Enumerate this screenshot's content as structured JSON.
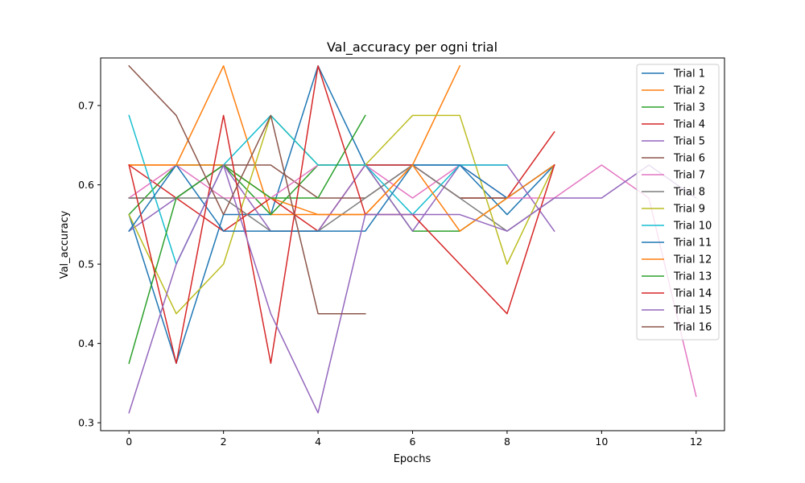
{
  "chart_data": {
    "type": "line",
    "title": "Val_accuracy per ogni trial",
    "xlabel": "Epochs",
    "ylabel": "Val_accuracy",
    "xlim": [
      -0.6,
      12.6
    ],
    "ylim": [
      0.29,
      0.76
    ],
    "xticks": [
      0,
      2,
      4,
      6,
      8,
      10,
      12
    ],
    "yticks": [
      0.3,
      0.4,
      0.5,
      0.6,
      0.7
    ],
    "ytick_labels": [
      "0.3",
      "0.4",
      "0.5",
      "0.6",
      "0.7"
    ],
    "grid": false,
    "legend_position": "top-right",
    "series": [
      {
        "name": "Trial 1",
        "color": "#1f77b4",
        "x": [
          0,
          1,
          2,
          3,
          4,
          5,
          6,
          7,
          8,
          9
        ],
        "values": [
          0.5625,
          0.375,
          0.5625,
          0.5625,
          0.75,
          0.625,
          0.625,
          0.625,
          0.5625,
          0.625
        ]
      },
      {
        "name": "Trial 2",
        "color": "#ff7f0e",
        "x": [
          0,
          1,
          2,
          3,
          4,
          5,
          6,
          7
        ],
        "values": [
          0.625,
          0.625,
          0.75,
          0.5625,
          0.5625,
          0.5625,
          0.625,
          0.75
        ]
      },
      {
        "name": "Trial 3",
        "color": "#2ca02c",
        "x": [
          0,
          1,
          2,
          3,
          4,
          5,
          6,
          7,
          8,
          9
        ],
        "values": [
          0.5625,
          0.625,
          0.625,
          0.5625,
          0.625,
          0.625,
          0.541667,
          0.541667,
          0.583333,
          0.625
        ]
      },
      {
        "name": "Trial 4",
        "color": "#d62728",
        "x": [
          0,
          1,
          2,
          3,
          4,
          5,
          6,
          7,
          8,
          9
        ],
        "values": [
          0.625,
          0.583333,
          0.541667,
          0.583333,
          0.541667,
          0.625,
          0.625,
          0.583333,
          0.583333,
          0.666667
        ]
      },
      {
        "name": "Trial 5",
        "color": "#9467bd",
        "x": [
          0,
          1,
          2,
          3,
          4,
          5,
          6,
          7,
          8,
          9
        ],
        "values": [
          0.541667,
          0.583333,
          0.625,
          0.541667,
          0.541667,
          0.625,
          0.541667,
          0.625,
          0.625,
          0.541667
        ]
      },
      {
        "name": "Trial 6",
        "color": "#8c564b",
        "x": [
          0,
          1,
          2,
          3,
          4,
          5,
          6,
          7,
          8,
          9
        ],
        "values": [
          0.583333,
          0.583333,
          0.625,
          0.625,
          0.583333,
          0.583333,
          0.625,
          0.583333,
          0.583333,
          0.625
        ]
      },
      {
        "name": "Trial 7",
        "color": "#e377c2",
        "x": [
          0,
          1,
          2,
          3,
          4,
          5,
          6,
          7,
          8,
          9,
          10,
          11,
          12
        ],
        "values": [
          0.583333,
          0.625,
          0.583333,
          0.583333,
          0.625,
          0.625,
          0.583333,
          0.625,
          0.583333,
          0.583333,
          0.625,
          0.583333,
          0.333333
        ]
      },
      {
        "name": "Trial 8",
        "color": "#7f7f7f",
        "x": [
          0,
          1,
          2,
          3,
          4,
          5,
          6,
          7,
          8,
          9
        ],
        "values": [
          0.583333,
          0.583333,
          0.583333,
          0.541667,
          0.541667,
          0.583333,
          0.625,
          0.583333,
          0.541667,
          0.583333
        ]
      },
      {
        "name": "Trial 9",
        "color": "#bcbd22",
        "x": [
          0,
          1,
          2,
          3,
          4,
          5,
          6,
          7,
          8,
          9
        ],
        "values": [
          0.5625,
          0.4375,
          0.5,
          0.6875,
          0.625,
          0.625,
          0.6875,
          0.6875,
          0.5,
          0.625
        ]
      },
      {
        "name": "Trial 10",
        "color": "#17becf",
        "x": [
          0,
          1,
          2,
          3,
          4,
          5,
          6,
          7,
          8
        ],
        "values": [
          0.6875,
          0.5,
          0.625,
          0.6875,
          0.625,
          0.625,
          0.5625,
          0.625,
          0.625
        ]
      },
      {
        "name": "Trial 11",
        "color": "#1f77b4",
        "x": [
          0,
          1,
          2,
          3,
          4,
          5,
          6,
          7,
          8,
          9
        ],
        "values": [
          0.541667,
          0.625,
          0.541667,
          0.541667,
          0.541667,
          0.541667,
          0.625,
          0.625,
          0.583333,
          0.625
        ]
      },
      {
        "name": "Trial 12",
        "color": "#ff7f0e",
        "x": [
          0,
          1,
          2,
          3,
          4,
          5,
          6,
          7,
          8,
          9
        ],
        "values": [
          0.625,
          0.625,
          0.625,
          0.583333,
          0.5625,
          0.5625,
          0.625,
          0.541667,
          0.583333,
          0.625
        ]
      },
      {
        "name": "Trial 13",
        "color": "#2ca02c",
        "x": [
          0,
          1,
          2,
          3,
          4,
          5
        ],
        "values": [
          0.375,
          0.583333,
          0.625,
          0.583333,
          0.583333,
          0.6875
        ]
      },
      {
        "name": "Trial 14",
        "color": "#d62728",
        "x": [
          0,
          1,
          2,
          3,
          4,
          5,
          6,
          7,
          8,
          9
        ],
        "values": [
          0.625,
          0.375,
          0.6875,
          0.375,
          0.75,
          0.5625,
          0.5625,
          0.5,
          0.4375,
          0.625
        ]
      },
      {
        "name": "Trial 15",
        "color": "#9467bd",
        "x": [
          0,
          1,
          2,
          3,
          4,
          5,
          6,
          7,
          8,
          9,
          10,
          11,
          12
        ],
        "values": [
          0.3125,
          0.5,
          0.625,
          0.4375,
          0.3125,
          0.5625,
          0.5625,
          0.5625,
          0.541667,
          0.583333,
          0.583333,
          0.625,
          0.583333
        ]
      },
      {
        "name": "Trial 16",
        "color": "#8c564b",
        "x": [
          0,
          1,
          2,
          3,
          4,
          5
        ],
        "values": [
          0.75,
          0.6875,
          0.5625,
          0.6875,
          0.4375,
          0.4375
        ]
      }
    ]
  }
}
